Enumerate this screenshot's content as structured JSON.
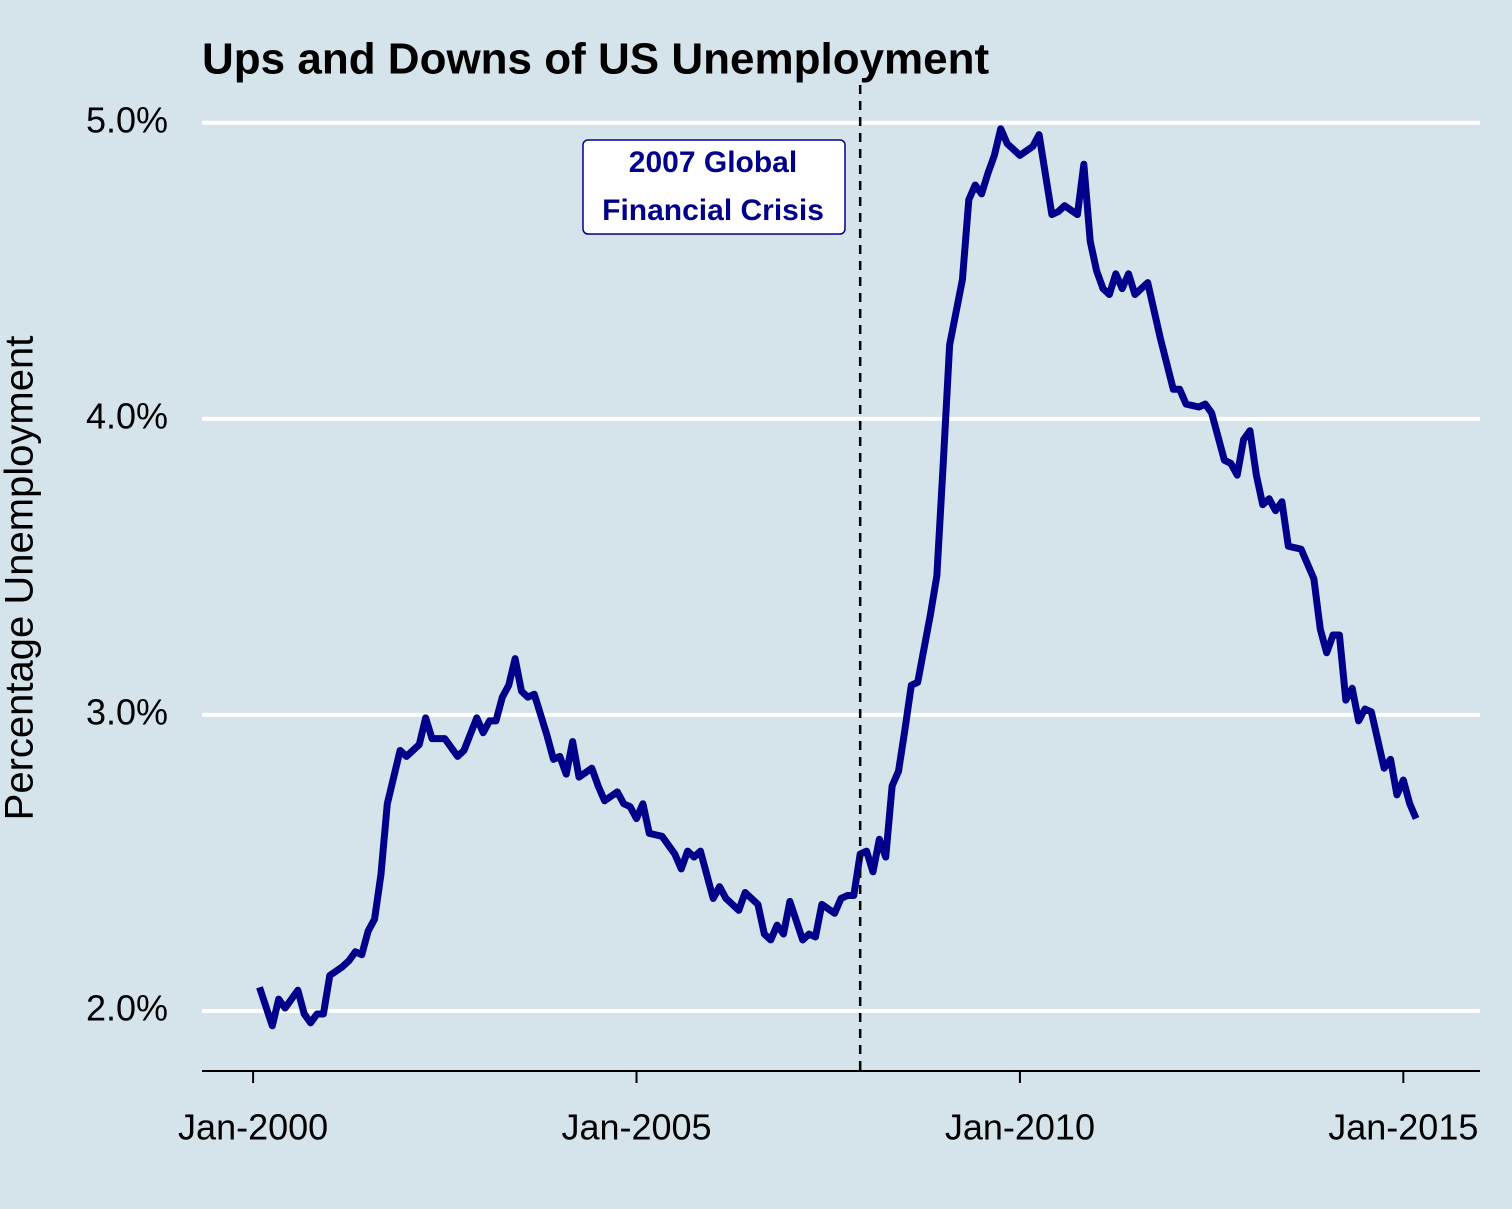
{
  "chart_data": {
    "type": "line",
    "title": "Ups and Downs of US Unemployment",
    "y_label": "Percentage Unemployment",
    "color": "#00008b",
    "background": "#d5e4eb",
    "grid": true,
    "x": [
      "2000-02",
      "2000-04",
      "2000-05",
      "2000-06",
      "2000-08",
      "2000-09",
      "2000-10",
      "2000-11",
      "2000-12",
      "2001-01",
      "2001-03",
      "2001-04",
      "2001-05",
      "2001-06",
      "2001-07",
      "2001-08",
      "2001-09",
      "2001-10",
      "2001-12",
      "2002-01",
      "2002-03",
      "2002-04",
      "2002-05",
      "2002-07",
      "2002-09",
      "2002-10",
      "2002-12",
      "2003-01",
      "2003-02",
      "2003-03",
      "2003-04",
      "2003-05",
      "2003-06",
      "2003-07",
      "2003-08",
      "2003-09",
      "2003-11",
      "2003-12",
      "2004-01",
      "2004-02",
      "2004-03",
      "2004-04",
      "2004-06",
      "2004-07",
      "2004-08",
      "2004-10",
      "2004-11",
      "2004-12",
      "2005-01",
      "2005-02",
      "2005-03",
      "2005-05",
      "2005-07",
      "2005-08",
      "2005-09",
      "2005-10",
      "2005-11",
      "2006-01",
      "2006-02",
      "2006-03",
      "2006-05",
      "2006-06",
      "2006-08",
      "2006-09",
      "2006-10",
      "2006-11",
      "2006-12",
      "2007-01",
      "2007-03",
      "2007-04",
      "2007-05",
      "2007-06",
      "2007-08",
      "2007-09",
      "2007-10",
      "2007-11",
      "2007-12",
      "2008-01",
      "2008-02",
      "2008-03",
      "2008-04",
      "2008-05",
      "2008-06",
      "2008-07",
      "2008-08",
      "2008-09",
      "2008-11",
      "2008-12",
      "2009-01",
      "2009-02",
      "2009-04",
      "2009-05",
      "2009-06",
      "2009-07",
      "2009-08",
      "2009-09",
      "2009-10",
      "2009-11",
      "2010-01",
      "2010-03",
      "2010-04",
      "2010-06",
      "2010-07",
      "2010-08",
      "2010-10",
      "2010-11",
      "2010-12",
      "2011-01",
      "2011-02",
      "2011-03",
      "2011-04",
      "2011-05",
      "2011-06",
      "2011-07",
      "2011-08",
      "2011-09",
      "2011-11",
      "2012-01",
      "2012-02",
      "2012-03",
      "2012-05",
      "2012-06",
      "2012-07",
      "2012-09",
      "2012-10",
      "2012-11",
      "2012-12",
      "2013-01",
      "2013-02",
      "2013-03",
      "2013-04",
      "2013-05",
      "2013-06",
      "2013-07",
      "2013-09",
      "2013-11",
      "2013-12",
      "2014-01",
      "2014-02",
      "2014-03",
      "2014-04",
      "2014-05",
      "2014-06",
      "2014-07",
      "2014-08",
      "2014-10",
      "2014-11",
      "2014-12",
      "2015-01",
      "2015-02",
      "2015-03"
    ],
    "values": [
      2.08,
      1.95,
      2.04,
      2.01,
      2.07,
      1.99,
      1.96,
      1.99,
      1.99,
      2.12,
      2.15,
      2.17,
      2.2,
      2.19,
      2.27,
      2.31,
      2.46,
      2.7,
      2.88,
      2.86,
      2.9,
      2.99,
      2.92,
      2.92,
      2.86,
      2.88,
      2.99,
      2.94,
      2.98,
      2.98,
      3.06,
      3.1,
      3.19,
      3.08,
      3.06,
      3.07,
      2.93,
      2.85,
      2.86,
      2.8,
      2.91,
      2.79,
      2.82,
      2.76,
      2.71,
      2.74,
      2.7,
      2.69,
      2.65,
      2.7,
      2.6,
      2.59,
      2.53,
      2.48,
      2.54,
      2.52,
      2.54,
      2.38,
      2.42,
      2.38,
      2.34,
      2.4,
      2.36,
      2.26,
      2.24,
      2.29,
      2.26,
      2.37,
      2.24,
      2.26,
      2.25,
      2.36,
      2.33,
      2.38,
      2.39,
      2.39,
      2.53,
      2.54,
      2.47,
      2.58,
      2.52,
      2.76,
      2.81,
      2.95,
      3.1,
      3.11,
      3.34,
      3.47,
      3.85,
      4.25,
      4.47,
      4.74,
      4.79,
      4.76,
      4.83,
      4.89,
      4.98,
      4.93,
      4.89,
      4.92,
      4.96,
      4.69,
      4.7,
      4.72,
      4.69,
      4.86,
      4.6,
      4.5,
      4.44,
      4.42,
      4.49,
      4.44,
      4.49,
      4.42,
      4.44,
      4.46,
      4.27,
      4.1,
      4.1,
      4.05,
      4.04,
      4.05,
      4.02,
      3.86,
      3.85,
      3.81,
      3.93,
      3.96,
      3.81,
      3.71,
      3.73,
      3.69,
      3.72,
      3.57,
      3.56,
      3.46,
      3.29,
      3.21,
      3.27,
      3.27,
      3.05,
      3.09,
      2.98,
      3.02,
      3.01,
      2.82,
      2.85,
      2.73,
      2.78,
      2.7,
      2.65
    ],
    "xlim": [
      "1999-05",
      "2016-01"
    ],
    "xticks": [
      {
        "value": "2000-01",
        "label": "Jan-2000"
      },
      {
        "value": "2005-01",
        "label": "Jan-2005"
      },
      {
        "value": "2010-01",
        "label": "Jan-2010"
      },
      {
        "value": "2015-01",
        "label": "Jan-2015"
      }
    ],
    "ylim": [
      1.8,
      5.15
    ],
    "yticks": [
      {
        "value": 2,
        "label": "2.0%"
      },
      {
        "value": 3,
        "label": "3.0%"
      },
      {
        "value": 4,
        "label": "4.0%"
      },
      {
        "value": 5,
        "label": "5.0%"
      }
    ],
    "vline": "2007-12",
    "annotation": [
      "2007 Global",
      "Financial Crisis"
    ]
  }
}
